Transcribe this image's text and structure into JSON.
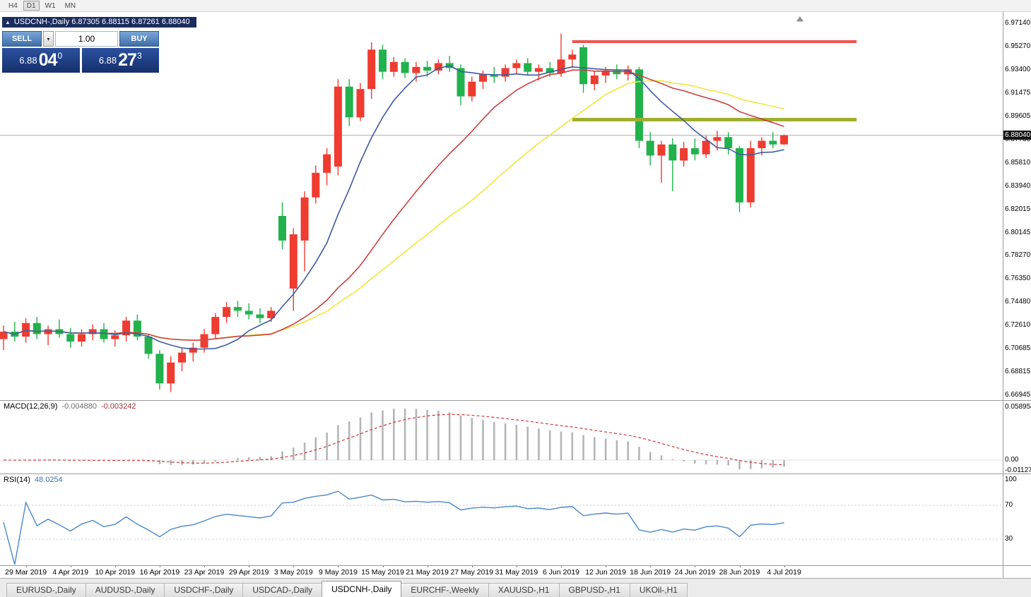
{
  "toolbar": {
    "timeframes": [
      {
        "label": "H4",
        "active": false
      },
      {
        "label": "D1",
        "active": true
      },
      {
        "label": "W1",
        "active": false
      },
      {
        "label": "MN",
        "active": false
      }
    ]
  },
  "chart": {
    "title": "USDCNH-,Daily  6.87305 6.88115 6.87261 6.88040",
    "symbol": "USDCNH",
    "period": "Daily"
  },
  "icons": {
    "dropdown": "▾",
    "window_marker": "▲"
  },
  "trade_panel": {
    "sell_label": "SELL",
    "buy_label": "BUY",
    "volume": "1.00",
    "sell_price": {
      "base": "6.88",
      "pips": "04",
      "point": "0"
    },
    "buy_price": {
      "base": "6.88",
      "pips": "27",
      "point": "3"
    }
  },
  "price_axis": {
    "labels": [
      "6.97140",
      "6.95270",
      "6.93400",
      "6.91475",
      "6.89605",
      "6.87735",
      "6.85810",
      "6.83940",
      "6.82015",
      "6.80145",
      "6.78270",
      "6.76350",
      "6.74480",
      "6.72610",
      "6.70685",
      "6.68815",
      "6.66945"
    ],
    "current": "6.88040"
  },
  "macd": {
    "name": "MACD(12,26,9)",
    "main_value": "-0.004880",
    "signal_value": "-0.003242",
    "axis": [
      "0.058954",
      "0.00",
      "-0.011273"
    ]
  },
  "rsi": {
    "name": "RSI(14)",
    "value": "48.0254",
    "axis": [
      "100",
      "70",
      "30"
    ],
    "levels": [
      70,
      30
    ]
  },
  "chart_data": {
    "type": "candlestick",
    "symbol": "USDCNH",
    "timeframe": "Daily",
    "colors": {
      "up": "#ef3b30",
      "down": "#22b24c"
    },
    "candles": [
      [
        6.715,
        6.726,
        6.706,
        6.721
      ],
      [
        6.721,
        6.729,
        6.713,
        6.717
      ],
      [
        6.717,
        6.732,
        6.712,
        6.728
      ],
      [
        6.728,
        6.733,
        6.715,
        6.719
      ],
      [
        6.719,
        6.726,
        6.71,
        6.723
      ],
      [
        6.723,
        6.731,
        6.716,
        6.719
      ],
      [
        6.719,
        6.724,
        6.708,
        6.713
      ],
      [
        6.713,
        6.723,
        6.709,
        6.719
      ],
      [
        6.719,
        6.727,
        6.714,
        6.723
      ],
      [
        6.723,
        6.728,
        6.712,
        6.715
      ],
      [
        6.715,
        6.722,
        6.709,
        6.718
      ],
      [
        6.718,
        6.733,
        6.713,
        6.73
      ],
      [
        6.73,
        6.735,
        6.714,
        6.717
      ],
      [
        6.717,
        6.719,
        6.699,
        6.703
      ],
      [
        6.703,
        6.706,
        6.674,
        6.679
      ],
      [
        6.679,
        6.701,
        6.672,
        6.696
      ],
      [
        6.696,
        6.708,
        6.689,
        6.704
      ],
      [
        6.704,
        6.712,
        6.697,
        6.708
      ],
      [
        6.708,
        6.723,
        6.704,
        6.719
      ],
      [
        6.719,
        6.736,
        6.715,
        6.733
      ],
      [
        6.733,
        6.745,
        6.728,
        6.741
      ],
      [
        6.741,
        6.746,
        6.733,
        6.738
      ],
      [
        6.738,
        6.744,
        6.731,
        6.735
      ],
      [
        6.735,
        6.74,
        6.728,
        6.732
      ],
      [
        6.732,
        6.741,
        6.729,
        6.738
      ],
      [
        6.815,
        6.826,
        6.788,
        6.795
      ],
      [
        6.756,
        6.805,
        6.738,
        6.8
      ],
      [
        6.795,
        6.835,
        6.77,
        6.83
      ],
      [
        6.83,
        6.856,
        6.825,
        6.85
      ],
      [
        6.85,
        6.87,
        6.84,
        6.865
      ],
      [
        6.855,
        6.926,
        6.848,
        6.92
      ],
      [
        6.92,
        6.926,
        6.888,
        6.895
      ],
      [
        6.895,
        6.923,
        6.892,
        6.918
      ],
      [
        6.918,
        6.956,
        6.91,
        6.95
      ],
      [
        6.95,
        6.954,
        6.926,
        6.932
      ],
      [
        6.932,
        6.944,
        6.928,
        6.94
      ],
      [
        6.94,
        6.943,
        6.927,
        6.931
      ],
      [
        6.931,
        6.94,
        6.924,
        6.936
      ],
      [
        6.936,
        6.941,
        6.928,
        6.933
      ],
      [
        6.933,
        6.942,
        6.93,
        6.939
      ],
      [
        6.939,
        6.945,
        6.932,
        6.935
      ],
      [
        6.935,
        6.938,
        6.905,
        6.912
      ],
      [
        6.912,
        6.928,
        6.908,
        6.924
      ],
      [
        6.924,
        6.933,
        6.918,
        6.93
      ],
      [
        6.93,
        6.936,
        6.923,
        6.928
      ],
      [
        6.928,
        6.938,
        6.924,
        6.935
      ],
      [
        6.935,
        6.942,
        6.93,
        6.939
      ],
      [
        6.939,
        6.943,
        6.929,
        6.932
      ],
      [
        6.932,
        6.938,
        6.925,
        6.935
      ],
      [
        6.935,
        6.94,
        6.928,
        6.931
      ],
      [
        6.931,
        6.963,
        6.928,
        6.942
      ],
      [
        6.942,
        6.95,
        6.935,
        6.946
      ],
      [
        6.952,
        6.954,
        6.915,
        6.922
      ],
      [
        6.922,
        6.933,
        6.917,
        6.929
      ],
      [
        6.929,
        6.936,
        6.923,
        6.933
      ],
      [
        6.933,
        6.938,
        6.926,
        6.93
      ],
      [
        6.93,
        6.937,
        6.925,
        6.934
      ],
      [
        6.934,
        6.936,
        6.87,
        6.876
      ],
      [
        6.876,
        6.883,
        6.856,
        6.864
      ],
      [
        6.864,
        6.876,
        6.842,
        6.873
      ],
      [
        6.873,
        6.878,
        6.835,
        6.86
      ],
      [
        6.86,
        6.875,
        6.855,
        6.87
      ],
      [
        6.87,
        6.878,
        6.86,
        6.865
      ],
      [
        6.865,
        6.88,
        6.862,
        6.876
      ],
      [
        6.876,
        6.884,
        6.868,
        6.879
      ],
      [
        6.879,
        6.883,
        6.865,
        6.87
      ],
      [
        6.87,
        6.872,
        6.818,
        6.826
      ],
      [
        6.826,
        6.876,
        6.822,
        6.87
      ],
      [
        6.87,
        6.879,
        6.864,
        6.876
      ],
      [
        6.876,
        6.883,
        6.87,
        6.873
      ],
      [
        6.87305,
        6.88115,
        6.87261,
        6.8804
      ]
    ],
    "x_labels": [
      {
        "bar": 2,
        "label": "29 Mar 2019"
      },
      {
        "bar": 6,
        "label": "4 Apr 2019"
      },
      {
        "bar": 10,
        "label": "10 Apr 2019"
      },
      {
        "bar": 14,
        "label": "16 Apr 2019"
      },
      {
        "bar": 18,
        "label": "23 Apr 2019"
      },
      {
        "bar": 22,
        "label": "29 Apr 2019"
      },
      {
        "bar": 26,
        "label": "3 May 2019"
      },
      {
        "bar": 30,
        "label": "9 May 2019"
      },
      {
        "bar": 34,
        "label": "15 May 2019"
      },
      {
        "bar": 38,
        "label": "21 May 2019"
      },
      {
        "bar": 42,
        "label": "27 May 2019"
      },
      {
        "bar": 46,
        "label": "31 May 2019"
      },
      {
        "bar": 50,
        "label": "6 Jun 2019"
      },
      {
        "bar": 54,
        "label": "12 Jun 2019"
      },
      {
        "bar": 58,
        "label": "18 Jun 2019"
      },
      {
        "bar": 62,
        "label": "24 Jun 2019"
      },
      {
        "bar": 66,
        "label": "28 Jun 2019"
      },
      {
        "bar": 70,
        "label": "4 Jul 2019"
      }
    ],
    "moving_averages": [
      {
        "period": 30,
        "color": "#f0e63c"
      },
      {
        "period": 20,
        "color": "#c94040"
      },
      {
        "period": 8,
        "color": "#3d5c9e"
      }
    ],
    "hlines": [
      {
        "name": "resistance-line",
        "price": 6.9565,
        "color": "#ef5350",
        "thickness": 4,
        "from_bar": 51,
        "to_bar": 76.5
      },
      {
        "name": "support-line",
        "price": 6.8932,
        "color": "#9fae2f",
        "thickness": 5,
        "from_bar": 51,
        "to_bar": 76.5
      }
    ],
    "current_price": 6.8804,
    "y_axis_range": [
      6.66945,
      6.9714
    ]
  },
  "tabs": [
    {
      "label": "EURUSD-,Daily",
      "active": false
    },
    {
      "label": "AUDUSD-,Daily",
      "active": false
    },
    {
      "label": "USDCHF-,Daily",
      "active": false
    },
    {
      "label": "USDCAD-,Daily",
      "active": false
    },
    {
      "label": "USDCNH-,Daily",
      "active": true
    },
    {
      "label": "EURCHF-,Weekly",
      "active": false
    },
    {
      "label": "XAUUSD-,H1",
      "active": false
    },
    {
      "label": "GBPUSD-,H1",
      "active": false
    },
    {
      "label": "UKOil-,H1",
      "active": false
    }
  ]
}
